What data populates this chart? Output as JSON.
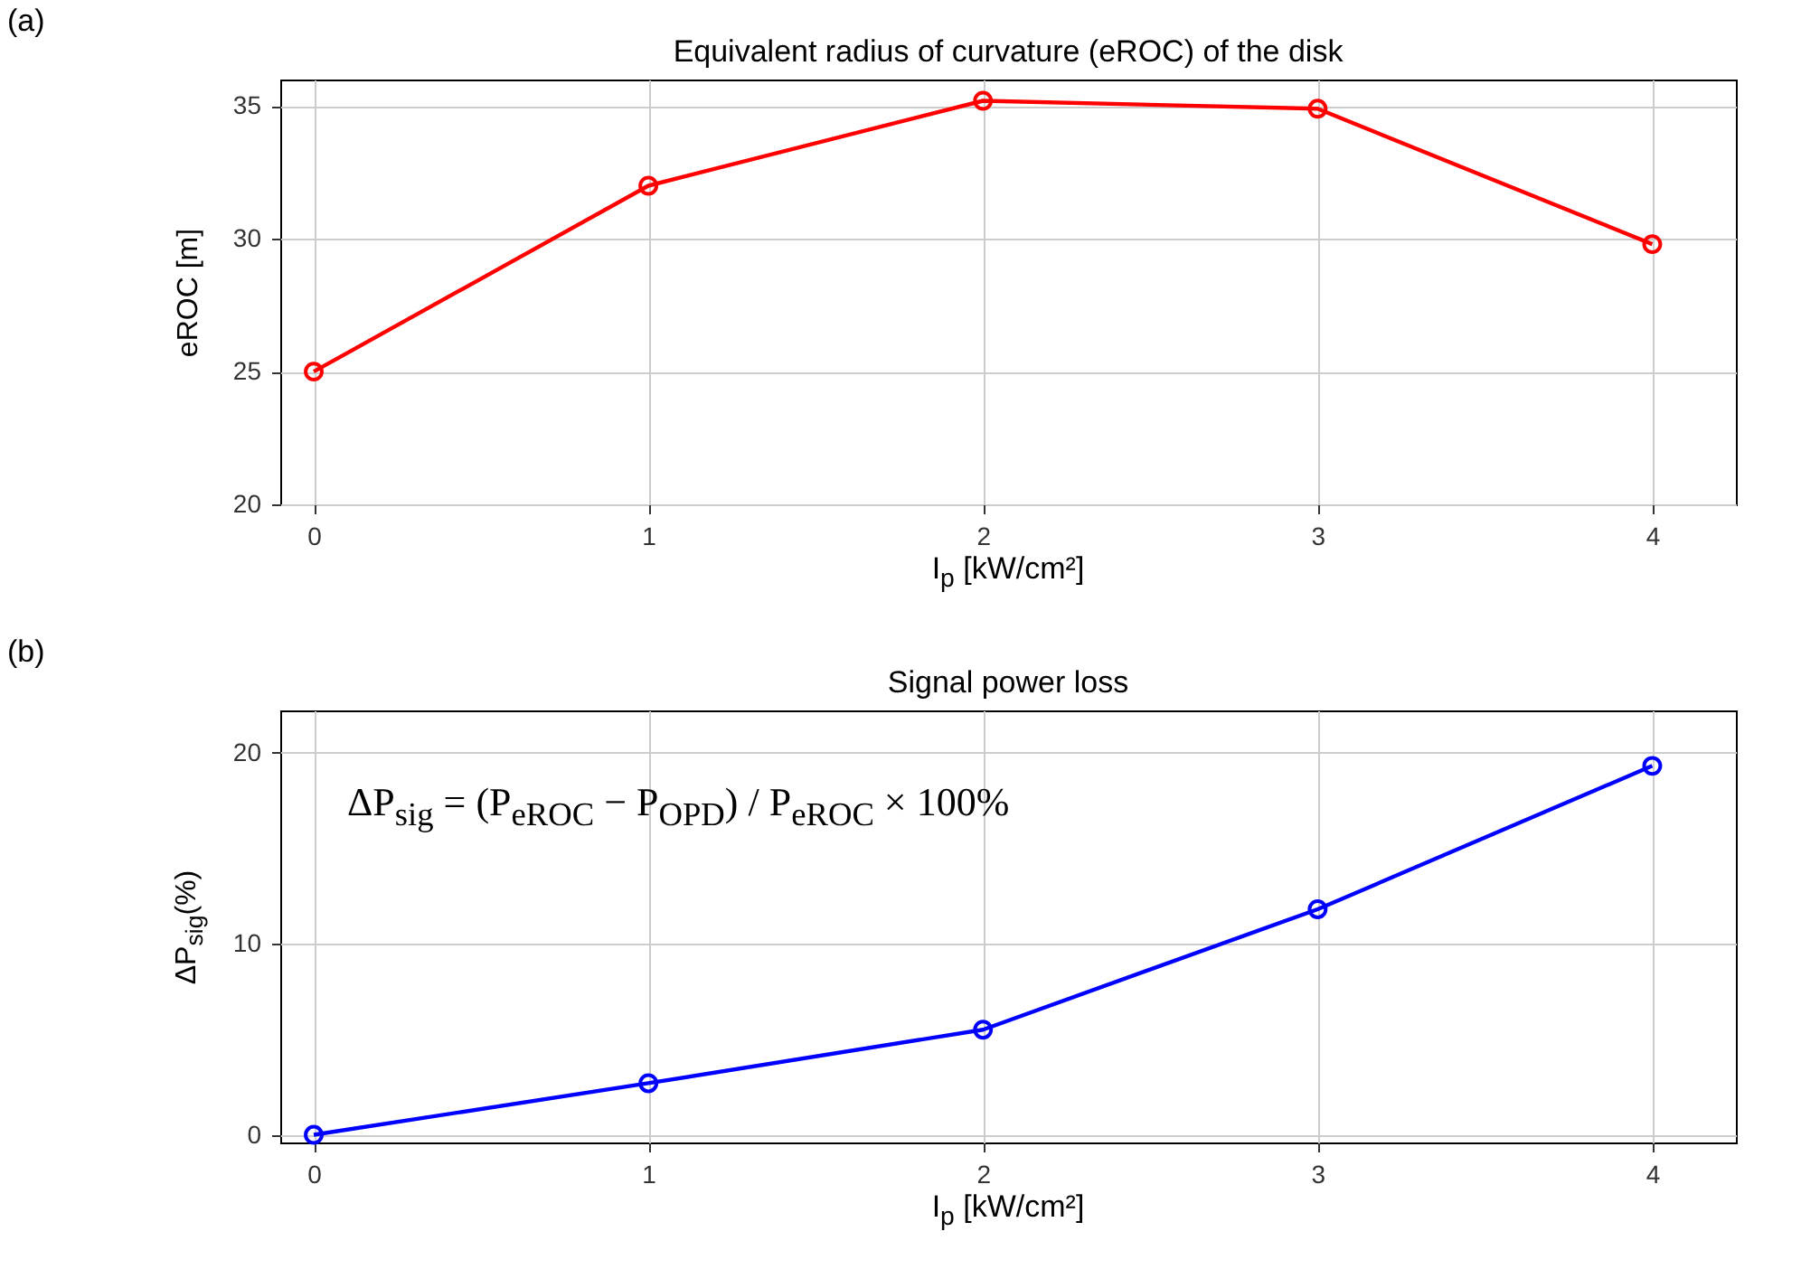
{
  "chart_data": [
    {
      "type": "line",
      "title": "Equivalent radius of curvature (eROC) of the disk",
      "xlabel": "I$_{p}$ [kW/cm²]",
      "ylabel": "eROC [m]",
      "x": [
        0,
        1,
        2,
        3,
        4
      ],
      "series": [
        {
          "color": "#ff0000",
          "values": [
            25,
            32,
            35.2,
            34.9,
            29.8
          ]
        }
      ],
      "xlim": [
        -0.1,
        4.25
      ],
      "xticks": [
        0,
        1,
        2,
        3,
        4
      ],
      "ylim": [
        20,
        36
      ],
      "yticks": [
        20,
        25,
        30,
        35
      ],
      "grid": true,
      "marker": "circle",
      "line_style": "solid",
      "annotations": [
        "(a)"
      ]
    },
    {
      "type": "line",
      "title": "Signal power loss",
      "xlabel": "I$_{p}$ [kW/cm²]",
      "ylabel": "ΔP$_{sig}$(%)",
      "x": [
        0,
        1,
        2,
        3,
        4
      ],
      "series": [
        {
          "color": "#0000ff",
          "values": [
            0,
            2.7,
            5.5,
            11.8,
            19.3
          ]
        }
      ],
      "xlim": [
        -0.1,
        4.25
      ],
      "xticks": [
        0,
        1,
        2,
        3,
        4
      ],
      "ylim": [
        -0.4,
        22.2
      ],
      "yticks": [
        0,
        10,
        20
      ],
      "grid": true,
      "marker": "circle",
      "line_style": "solid",
      "annotations": [
        "(b)",
        "ΔP$_{sig}$ = (P$_{eROC}$ − P$_{OPD}$) / P$_{eROC}$ × 100%"
      ]
    }
  ]
}
